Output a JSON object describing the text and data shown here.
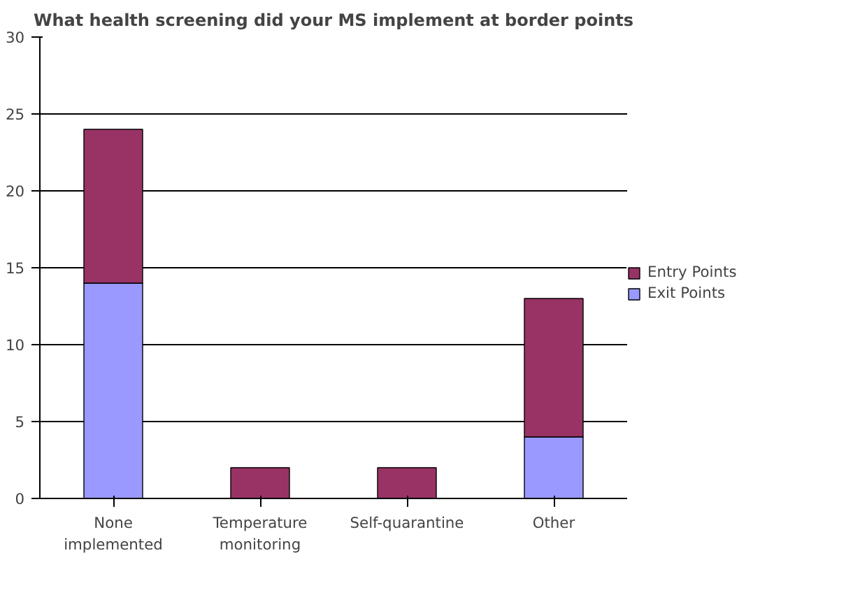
{
  "chart_data": {
    "type": "bar",
    "title": "What health screening did your MS implement at border points",
    "categories": [
      "None\nimplemented",
      "Temperature\nmonitoring",
      "Self-quarantine",
      "Other"
    ],
    "stacked": true,
    "series": [
      {
        "name": "Exit Points",
        "color": "#9999ff",
        "values": [
          14,
          0,
          0,
          4
        ]
      },
      {
        "name": "Entry Points",
        "color": "#993366",
        "values": [
          10,
          2,
          2,
          9
        ]
      }
    ],
    "ylim": [
      0,
      30
    ],
    "yticks": [
      0,
      5,
      10,
      15,
      20,
      25,
      30
    ],
    "grid": "y",
    "legend": "right"
  }
}
